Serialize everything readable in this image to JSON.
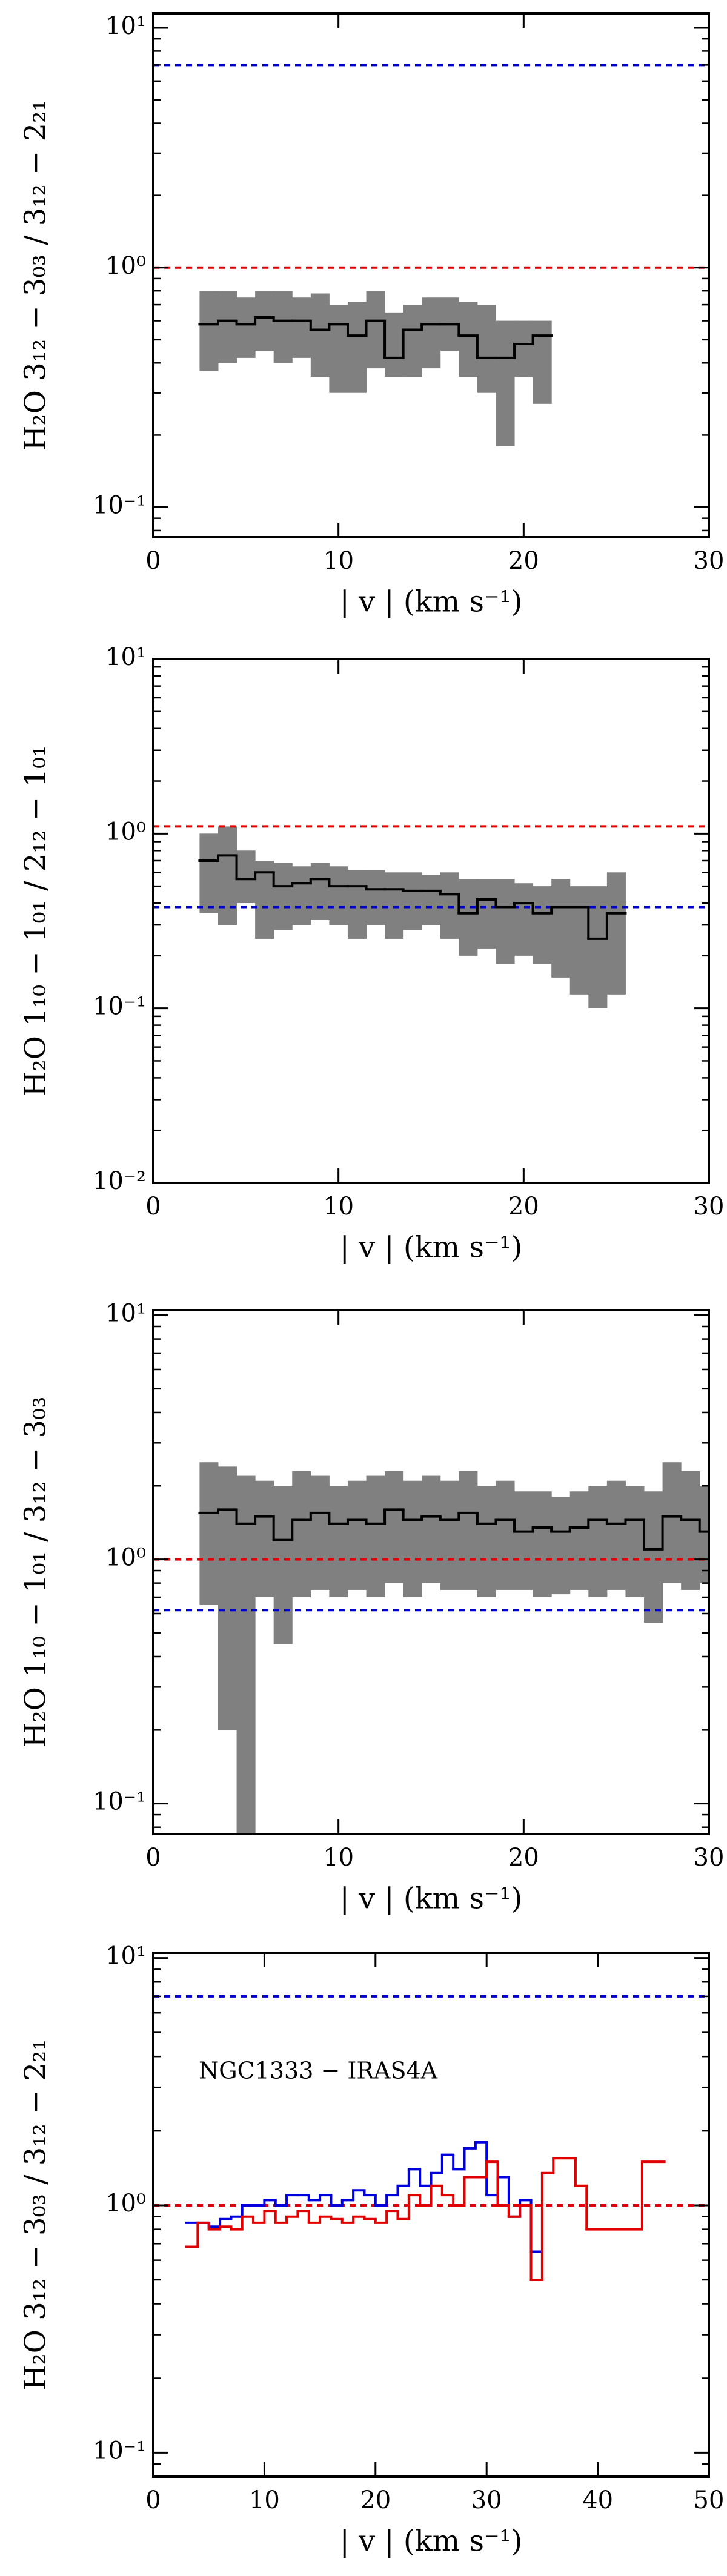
{
  "chart_data": [
    {
      "type": "line",
      "log_y": true,
      "ylabel": "H₂O 3₁₂ − 3₀₃ / 3₁₂ − 2₂₁",
      "xlabel": "| v | (km s⁻¹)",
      "xlim": [
        0,
        30
      ],
      "xticks": [
        0,
        10,
        20,
        30
      ],
      "ylim": [
        0.075,
        11.5
      ],
      "yticks": [
        {
          "value": 0.1,
          "label": "10⁻¹"
        },
        {
          "value": 1,
          "label": "10⁰"
        },
        {
          "value": 10,
          "label": "10¹"
        }
      ],
      "hlines": [
        {
          "value": 7,
          "color": "#0000cc"
        },
        {
          "value": 1,
          "color": "#e00000"
        }
      ],
      "series": [
        {
          "color": "#000000",
          "bins": [
            2.5,
            3.5,
            4.5,
            5.5,
            6.5,
            7.5,
            8.5,
            9.5,
            10.5,
            11.5,
            12.5,
            13.5,
            14.5,
            15.5,
            16.5,
            17.5,
            18.5,
            19.5,
            20.5,
            21.5
          ],
          "values": [
            0.58,
            0.6,
            0.58,
            0.62,
            0.6,
            0.6,
            0.55,
            0.58,
            0.52,
            0.6,
            0.42,
            0.55,
            0.58,
            0.58,
            0.52,
            0.42,
            0.42,
            0.48,
            0.52
          ],
          "band": {
            "color": "#808080",
            "lower": [
              0.37,
              0.4,
              0.42,
              0.45,
              0.4,
              0.42,
              0.35,
              0.3,
              0.3,
              0.38,
              0.35,
              0.35,
              0.38,
              0.45,
              0.35,
              0.3,
              0.18,
              0.35,
              0.27
            ],
            "upper": [
              0.8,
              0.8,
              0.75,
              0.8,
              0.8,
              0.75,
              0.78,
              0.7,
              0.72,
              0.8,
              0.65,
              0.7,
              0.75,
              0.75,
              0.72,
              0.7,
              0.6,
              0.6,
              0.6
            ]
          }
        }
      ]
    },
    {
      "type": "line",
      "log_y": true,
      "ylabel": "H₂O 1₁₀ − 1₀₁ / 2₁₂ − 1₀₁",
      "xlabel": "| v | (km s⁻¹)",
      "xlim": [
        0,
        30
      ],
      "xticks": [
        0,
        10,
        20,
        30
      ],
      "ylim": [
        0.01,
        10
      ],
      "yticks": [
        {
          "value": 0.01,
          "label": "10⁻²"
        },
        {
          "value": 0.1,
          "label": "10⁻¹"
        },
        {
          "value": 1,
          "label": "10⁰"
        },
        {
          "value": 10,
          "label": "10¹"
        }
      ],
      "hlines": [
        {
          "value": 1.1,
          "color": "#e00000"
        },
        {
          "value": 0.38,
          "color": "#0000cc"
        }
      ],
      "series": [
        {
          "color": "#000000",
          "bins": [
            2.5,
            3.5,
            4.5,
            5.5,
            6.5,
            7.5,
            8.5,
            9.5,
            10.5,
            11.5,
            12.5,
            13.5,
            14.5,
            15.5,
            16.5,
            17.5,
            18.5,
            19.5,
            20.5,
            21.5,
            22.5,
            23.5,
            24.5,
            25.5
          ],
          "values": [
            0.7,
            0.75,
            0.55,
            0.6,
            0.5,
            0.52,
            0.55,
            0.5,
            0.5,
            0.48,
            0.48,
            0.47,
            0.47,
            0.45,
            0.35,
            0.42,
            0.38,
            0.4,
            0.35,
            0.38,
            0.38,
            0.25,
            0.35
          ],
          "band": {
            "color": "#808080",
            "lower": [
              0.35,
              0.3,
              0.4,
              0.25,
              0.28,
              0.3,
              0.32,
              0.3,
              0.25,
              0.3,
              0.25,
              0.28,
              0.3,
              0.25,
              0.2,
              0.22,
              0.18,
              0.2,
              0.18,
              0.15,
              0.12,
              0.1,
              0.12
            ],
            "upper": [
              1.0,
              1.1,
              0.8,
              0.7,
              0.68,
              0.65,
              0.68,
              0.65,
              0.62,
              0.62,
              0.6,
              0.6,
              0.58,
              0.6,
              0.55,
              0.55,
              0.55,
              0.52,
              0.5,
              0.55,
              0.5,
              0.5,
              0.6
            ]
          }
        }
      ]
    },
    {
      "type": "line",
      "log_y": true,
      "ylabel": "H₂O 1₁₀ − 1₀₁ / 3₁₂ − 3₀₃",
      "xlabel": "| v | (km s⁻¹)",
      "xlim": [
        0,
        30
      ],
      "xticks": [
        0,
        10,
        20,
        30
      ],
      "ylim": [
        0.075,
        10.5
      ],
      "yticks": [
        {
          "value": 0.1,
          "label": "10⁻¹"
        },
        {
          "value": 1,
          "label": "10⁰"
        },
        {
          "value": 10,
          "label": "10¹"
        }
      ],
      "hlines": [
        {
          "value": 1,
          "color": "#e00000"
        },
        {
          "value": 0.62,
          "color": "#0000cc"
        }
      ],
      "series": [
        {
          "color": "#000000",
          "bins": [
            2.5,
            3.5,
            4.5,
            5.5,
            6.5,
            7.5,
            8.5,
            9.5,
            10.5,
            11.5,
            12.5,
            13.5,
            14.5,
            15.5,
            16.5,
            17.5,
            18.5,
            19.5,
            20.5,
            21.5,
            22.5,
            23.5,
            24.5,
            25.5,
            26.5,
            27.5,
            28.5,
            29.5,
            30
          ],
          "values": [
            1.55,
            1.6,
            1.4,
            1.5,
            1.2,
            1.45,
            1.55,
            1.4,
            1.45,
            1.4,
            1.6,
            1.45,
            1.5,
            1.45,
            1.55,
            1.4,
            1.45,
            1.3,
            1.35,
            1.3,
            1.35,
            1.45,
            1.4,
            1.45,
            1.1,
            1.5,
            1.45,
            1.3
          ],
          "band": {
            "color": "#808080",
            "lower": [
              0.65,
              0.2,
              0.05,
              0.7,
              0.45,
              0.7,
              0.75,
              0.7,
              0.75,
              0.7,
              0.8,
              0.7,
              0.8,
              0.75,
              0.75,
              0.7,
              0.75,
              0.75,
              0.7,
              0.72,
              0.75,
              0.7,
              0.75,
              0.7,
              0.55,
              0.8,
              0.75,
              0.8
            ],
            "upper": [
              2.5,
              2.4,
              2.2,
              2.1,
              2.0,
              2.3,
              2.2,
              2.0,
              2.1,
              2.2,
              2.3,
              2.1,
              2.2,
              2.1,
              2.3,
              2.0,
              2.1,
              1.9,
              1.9,
              1.8,
              1.9,
              2.0,
              2.1,
              2.0,
              1.9,
              2.5,
              2.3,
              2.0
            ]
          }
        }
      ]
    },
    {
      "type": "line",
      "log_y": true,
      "ylabel": "H₂O 3₁₂ − 3₀₃ / 3₁₂ − 2₂₁",
      "xlabel": "| v | (km s⁻¹)",
      "annotation": "NGC1333 − IRAS4A",
      "xlim": [
        0,
        50
      ],
      "xticks": [
        0,
        10,
        20,
        30,
        40,
        50
      ],
      "ylim": [
        0.08,
        10.5
      ],
      "yticks": [
        {
          "value": 0.1,
          "label": "10⁻¹"
        },
        {
          "value": 1,
          "label": "10⁰"
        },
        {
          "value": 10,
          "label": "10¹"
        }
      ],
      "hlines": [
        {
          "value": 7,
          "color": "#0000cc"
        },
        {
          "value": 1,
          "color": "#e00000"
        }
      ],
      "series": [
        {
          "color": "#0000dd",
          "bins": [
            3,
            4,
            5,
            6,
            7,
            8,
            9,
            10,
            11,
            12,
            13,
            14,
            15,
            16,
            17,
            18,
            19,
            20,
            21,
            22,
            23,
            24,
            25,
            26,
            27,
            28,
            29,
            30,
            31,
            32,
            33,
            34,
            35
          ],
          "values": [
            0.85,
            0.85,
            0.82,
            0.88,
            0.9,
            1.0,
            1.0,
            1.05,
            1.0,
            1.1,
            1.1,
            1.05,
            1.1,
            1.0,
            1.05,
            1.15,
            1.1,
            1.0,
            1.1,
            1.2,
            1.4,
            1.2,
            1.35,
            1.6,
            1.4,
            1.7,
            1.8,
            1.1,
            1.3,
            0.9,
            1.05,
            0.65
          ]
        },
        {
          "color": "#e00000",
          "bins": [
            3,
            4,
            5,
            6,
            7,
            8,
            9,
            10,
            11,
            12,
            13,
            14,
            15,
            16,
            17,
            18,
            19,
            20,
            21,
            22,
            23,
            24,
            25,
            26,
            27,
            28,
            29,
            30,
            31,
            32,
            33,
            34,
            35,
            36,
            38,
            39,
            44,
            46
          ],
          "values": [
            0.68,
            0.85,
            0.8,
            0.82,
            0.8,
            0.9,
            0.85,
            0.95,
            0.85,
            0.9,
            0.95,
            0.85,
            0.9,
            0.88,
            0.85,
            0.9,
            0.88,
            0.85,
            0.95,
            0.88,
            1.1,
            1.0,
            1.2,
            1.1,
            1.0,
            1.3,
            1.3,
            1.5,
            1.0,
            0.9,
            1.0,
            0.5,
            1.35,
            1.55,
            1.2,
            0.8,
            1.5
          ]
        }
      ]
    }
  ]
}
